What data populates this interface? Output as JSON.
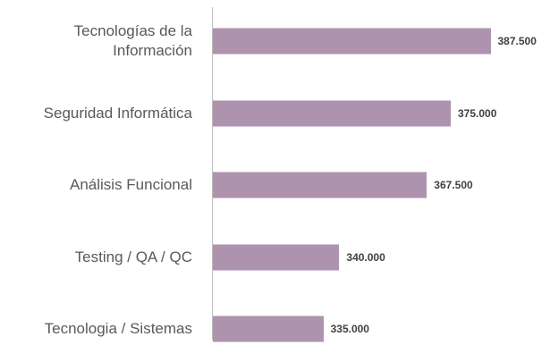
{
  "chart_data": {
    "type": "bar",
    "orientation": "horizontal",
    "categories": [
      "Tecnologías de la Información",
      "Seguridad Informática",
      "Análisis Funcional",
      "Testing / QA / QC",
      "Tecnologia / Sistemas"
    ],
    "values": [
      387500,
      375000,
      367500,
      340000,
      335000
    ],
    "value_labels": [
      "387.500",
      "375.000",
      "367.500",
      "340.000",
      "335.000"
    ],
    "color": "#ad93ad",
    "xlim": [
      300000,
      400000
    ]
  }
}
